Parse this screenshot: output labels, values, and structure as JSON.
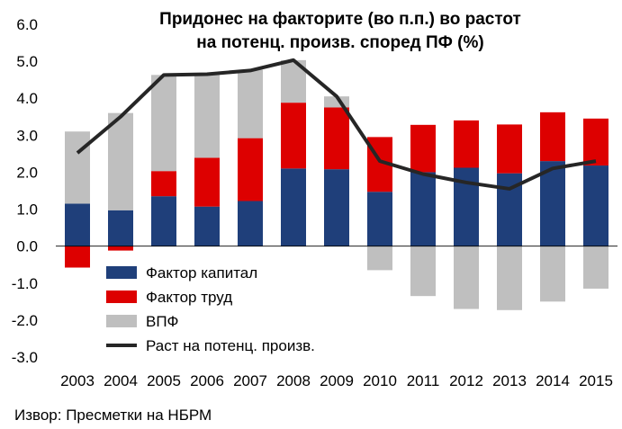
{
  "chart_data": {
    "type": "bar",
    "stacked": true,
    "title": [
      "Придонес на факторите (во п.п.) во растот",
      "на потенц. произв. според ПФ (%)"
    ],
    "categories": [
      "2003",
      "2004",
      "2005",
      "2006",
      "2007",
      "2008",
      "2009",
      "2010",
      "2011",
      "2012",
      "2013",
      "2014",
      "2015"
    ],
    "ylim": [
      -3.0,
      6.0
    ],
    "yticks": [
      "6.0",
      "5.0",
      "4.0",
      "3.0",
      "2.0",
      "1.0",
      "0.0",
      "-1.0",
      "-2.0",
      "-3.0"
    ],
    "ytick_values": [
      6,
      5,
      4,
      3,
      2,
      1,
      0,
      -1,
      -2,
      -3
    ],
    "series": [
      {
        "name": "Фактор капитал",
        "color": "#1f3f7a",
        "values": [
          1.15,
          0.97,
          1.35,
          1.07,
          1.22,
          2.1,
          2.08,
          1.47,
          2.0,
          2.12,
          1.97,
          2.3,
          2.18
        ]
      },
      {
        "name": "Фактор труд",
        "color": "#dd0000",
        "values": [
          -0.58,
          -0.12,
          0.68,
          1.32,
          1.7,
          1.78,
          1.67,
          1.48,
          1.28,
          1.28,
          1.32,
          1.32,
          1.27
        ]
      },
      {
        "name": "ВПФ",
        "color": "#bfbfbf",
        "values": [
          1.95,
          2.63,
          2.6,
          2.27,
          1.85,
          1.15,
          0.3,
          -0.65,
          -1.35,
          -1.7,
          -1.73,
          -1.5,
          -1.15
        ]
      }
    ],
    "line": {
      "name": "Раст на потенц. произв.",
      "color": "#262626",
      "values": [
        2.52,
        3.5,
        4.63,
        4.65,
        4.75,
        5.03,
        4.05,
        2.3,
        1.95,
        1.72,
        1.55,
        2.1,
        2.3
      ]
    },
    "legend_position": "bottom-left",
    "grid": false
  },
  "source_text": "Извор: Пресметки на НБРМ"
}
